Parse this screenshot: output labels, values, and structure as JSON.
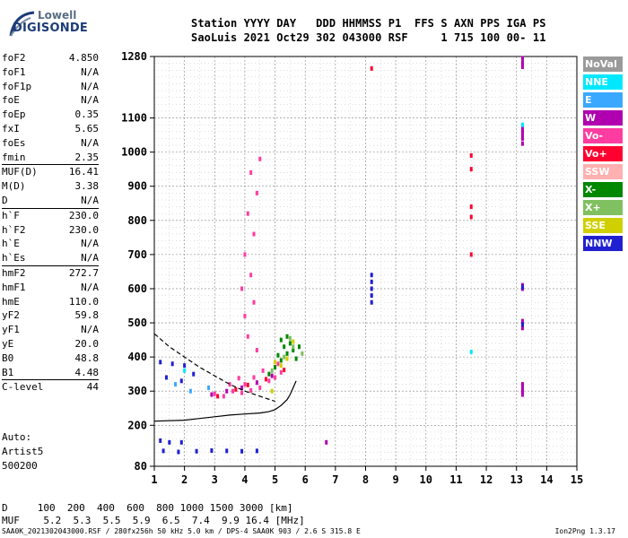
{
  "logo": {
    "line1": "Lowell",
    "line2": "DIGISONDE"
  },
  "header": {
    "row1": "Station YYYY DAY   DDD HHMMSS P1  FFS S AXN PPS IGA PS",
    "row2": "SaoLuis 2021 Oct29 302 043000 RSF     1 715 100 00- 11"
  },
  "params": [
    {
      "k": "foF2",
      "v": "4.850"
    },
    {
      "k": "foF1",
      "v": "N/A"
    },
    {
      "k": "foF1p",
      "v": "N/A"
    },
    {
      "k": "foE",
      "v": "N/A"
    },
    {
      "k": "foEp",
      "v": "0.35"
    },
    {
      "k": "fxI",
      "v": "5.65"
    },
    {
      "k": "foEs",
      "v": "N/A"
    },
    {
      "k": "fmin",
      "v": "2.35"
    },
    {
      "k": "MUF(D)",
      "v": "16.41"
    },
    {
      "k": "M(D)",
      "v": "3.38"
    },
    {
      "k": "D",
      "v": "N/A"
    },
    {
      "k": "h`F",
      "v": "230.0"
    },
    {
      "k": "h`F2",
      "v": "230.0"
    },
    {
      "k": "h`E",
      "v": "N/A"
    },
    {
      "k": "h`Es",
      "v": "N/A"
    },
    {
      "k": "hmF2",
      "v": "272.7"
    },
    {
      "k": "hmF1",
      "v": "N/A"
    },
    {
      "k": "hmE",
      "v": "110.0"
    },
    {
      "k": "yF2",
      "v": "59.8"
    },
    {
      "k": "yF1",
      "v": "N/A"
    },
    {
      "k": "yE",
      "v": "20.0"
    },
    {
      "k": "B0",
      "v": "48.8"
    },
    {
      "k": "B1",
      "v": "4.48"
    },
    {
      "k": "C-level",
      "v": "44"
    }
  ],
  "auto": {
    "l1": "Auto:",
    "l2": "Artist5",
    "l3": "500200"
  },
  "legend": [
    {
      "label": "NoVal",
      "color": "#9a9a9a"
    },
    {
      "label": "NNE",
      "color": "#00e8ff"
    },
    {
      "label": "E",
      "color": "#3aa8ff"
    },
    {
      "label": "W",
      "color": "#b000b0"
    },
    {
      "label": "Vo-",
      "color": "#ff3ca0"
    },
    {
      "label": "Vo+",
      "color": "#ff0030"
    },
    {
      "label": "SSW",
      "color": "#ffb0b0"
    },
    {
      "label": "X-",
      "color": "#008800"
    },
    {
      "label": "X+",
      "color": "#80c060"
    },
    {
      "label": "SSE",
      "color": "#d0d000"
    },
    {
      "label": "NNW",
      "color": "#2020d0"
    }
  ],
  "bottom": {
    "drow": "D     100  200  400  600  800 1000 1500 3000 [km]",
    "mrow": "MUF    5.2  5.3  5.5  5.9  6.5  7.4  9.9 16.4 [MHz]",
    "foot_left": "SAA0K_2021302043000.RSF / 280fx256h 50 kHz 5.0 km / DPS-4 SAA0K 903 / 2.6 S 315.8 E",
    "foot_right": "Ion2Png 1.3.17"
  },
  "chart_data": {
    "type": "scatter",
    "title": "",
    "xlabel": "",
    "ylabel": "",
    "xlim": [
      1,
      15
    ],
    "ylim": [
      80,
      1280
    ],
    "xticks": [
      1,
      2,
      3,
      4,
      5,
      6,
      7,
      8,
      9,
      10,
      11,
      12,
      13,
      14,
      15
    ],
    "yticks": [
      80,
      200,
      300,
      400,
      500,
      600,
      700,
      800,
      900,
      1000,
      1100,
      1280
    ],
    "grid": true,
    "legend_position": "right",
    "series": [
      {
        "name": "Vo-",
        "color": "#ff3ca0",
        "points": [
          [
            3.0,
            292
          ],
          [
            3.3,
            285
          ],
          [
            3.6,
            300
          ],
          [
            3.9,
            295
          ],
          [
            4.2,
            302
          ],
          [
            4.5,
            310
          ],
          [
            4.8,
            330
          ],
          [
            5.0,
            340
          ],
          [
            5.2,
            355
          ],
          [
            4.0,
            320
          ],
          [
            4.3,
            340
          ],
          [
            3.5,
            320
          ],
          [
            3.8,
            338
          ],
          [
            4.6,
            360
          ],
          [
            5.1,
            380
          ],
          [
            4.4,
            420
          ],
          [
            4.1,
            460
          ],
          [
            4.0,
            520
          ],
          [
            4.3,
            560
          ],
          [
            3.9,
            600
          ],
          [
            4.2,
            640
          ],
          [
            4.0,
            700
          ],
          [
            4.3,
            760
          ],
          [
            4.1,
            820
          ],
          [
            4.4,
            880
          ],
          [
            4.2,
            940
          ],
          [
            4.5,
            980
          ]
        ]
      },
      {
        "name": "Vo+",
        "color": "#ff0030",
        "points": [
          [
            3.1,
            285
          ],
          [
            3.7,
            305
          ],
          [
            4.1,
            318
          ],
          [
            4.7,
            335
          ],
          [
            5.3,
            362
          ],
          [
            11.5,
            990
          ],
          [
            11.5,
            950
          ],
          [
            11.5,
            840
          ],
          [
            11.5,
            810
          ],
          [
            11.5,
            700
          ],
          [
            8.2,
            1245
          ]
        ]
      },
      {
        "name": "W",
        "color": "#b000b0",
        "points": [
          [
            2.9,
            290
          ],
          [
            3.4,
            300
          ],
          [
            3.9,
            310
          ],
          [
            4.4,
            325
          ],
          [
            4.9,
            345
          ],
          [
            13.2,
            1070
          ],
          [
            13.2,
            1060
          ],
          [
            13.2,
            1050
          ],
          [
            13.2,
            1040
          ],
          [
            13.2,
            1025
          ],
          [
            13.2,
            320
          ],
          [
            13.2,
            310
          ],
          [
            13.2,
            300
          ],
          [
            13.2,
            290
          ],
          [
            13.2,
            610
          ],
          [
            13.2,
            600
          ],
          [
            13.2,
            505
          ],
          [
            13.2,
            495
          ],
          [
            13.2,
            485
          ],
          [
            13.2,
            1275
          ],
          [
            13.2,
            1262
          ],
          [
            13.2,
            1250
          ],
          [
            6.7,
            150
          ]
        ]
      },
      {
        "name": "X-",
        "color": "#008800",
        "points": [
          [
            4.8,
            350
          ],
          [
            5.0,
            370
          ],
          [
            5.2,
            390
          ],
          [
            5.4,
            410
          ],
          [
            5.6,
            420
          ],
          [
            5.5,
            440
          ],
          [
            5.3,
            430
          ],
          [
            5.1,
            405
          ],
          [
            5.7,
            395
          ],
          [
            5.8,
            430
          ],
          [
            5.4,
            460
          ],
          [
            5.2,
            450
          ]
        ]
      },
      {
        "name": "X+",
        "color": "#80c060",
        "points": [
          [
            4.9,
            360
          ],
          [
            5.3,
            400
          ],
          [
            5.6,
            430
          ],
          [
            5.9,
            410
          ],
          [
            5.5,
            455
          ]
        ]
      },
      {
        "name": "SSE",
        "color": "#d0d000",
        "points": [
          [
            5.2,
            375
          ],
          [
            5.4,
            395
          ],
          [
            5.0,
            385
          ],
          [
            4.9,
            300
          ],
          [
            5.6,
            445
          ]
        ]
      },
      {
        "name": "NNW",
        "color": "#2020d0",
        "points": [
          [
            1.2,
            155
          ],
          [
            1.5,
            150
          ],
          [
            1.9,
            150
          ],
          [
            1.3,
            125
          ],
          [
            1.8,
            122
          ],
          [
            2.4,
            124
          ],
          [
            2.9,
            126
          ],
          [
            3.4,
            125
          ],
          [
            3.9,
            124
          ],
          [
            4.4,
            125
          ],
          [
            1.2,
            385
          ],
          [
            1.6,
            380
          ],
          [
            2.0,
            375
          ],
          [
            1.4,
            340
          ],
          [
            1.9,
            330
          ],
          [
            2.3,
            350
          ],
          [
            8.2,
            640
          ],
          [
            8.2,
            620
          ],
          [
            8.2,
            600
          ],
          [
            8.2,
            580
          ],
          [
            8.2,
            560
          ],
          [
            13.2,
            605
          ],
          [
            13.2,
            495
          ]
        ]
      },
      {
        "name": "NNE",
        "color": "#00e8ff",
        "points": [
          [
            11.5,
            415
          ],
          [
            13.2,
            1080
          ],
          [
            2.0,
            360
          ]
        ]
      },
      {
        "name": "E",
        "color": "#3aa8ff",
        "points": [
          [
            2.2,
            300
          ],
          [
            1.7,
            320
          ],
          [
            2.8,
            310
          ]
        ]
      }
    ],
    "trace": {
      "name": "F-layer trace",
      "color": "#000000",
      "points": [
        [
          1.0,
          212
        ],
        [
          2.0,
          215
        ],
        [
          2.5,
          220
        ],
        [
          3.0,
          225
        ],
        [
          3.5,
          230
        ],
        [
          4.0,
          233
        ],
        [
          4.5,
          236
        ],
        [
          4.8,
          240
        ],
        [
          5.0,
          246
        ],
        [
          5.2,
          258
        ],
        [
          5.4,
          275
        ],
        [
          5.5,
          290
        ],
        [
          5.6,
          310
        ],
        [
          5.7,
          330
        ]
      ]
    },
    "trace2": {
      "name": "O-layer profile",
      "color": "#000000",
      "points": [
        [
          1.0,
          468
        ],
        [
          1.5,
          430
        ],
        [
          2.0,
          400
        ],
        [
          2.5,
          370
        ],
        [
          3.0,
          345
        ],
        [
          3.5,
          320
        ],
        [
          4.0,
          300
        ],
        [
          4.5,
          285
        ],
        [
          5.0,
          270
        ]
      ]
    }
  }
}
